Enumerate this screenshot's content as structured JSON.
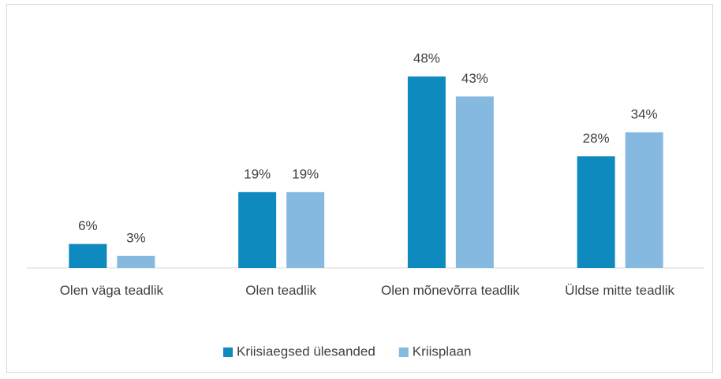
{
  "chart_data": {
    "type": "bar",
    "categories": [
      "Olen väga teadlik",
      "Olen teadlik",
      "Olen mõnevõrra teadlik",
      "Üldse mitte teadlik"
    ],
    "series": [
      {
        "name": "Kriisiaegsed ülesanded",
        "color": "#0e8abf",
        "values": [
          6,
          19,
          48,
          28
        ],
        "value_labels": [
          "6%",
          "19%",
          "48%",
          "28%"
        ]
      },
      {
        "name": "Kriisplaan",
        "color": "#86b9e0",
        "values": [
          3,
          19,
          43,
          34
        ],
        "value_labels": [
          "3%",
          "19%",
          "43%",
          "34%"
        ]
      }
    ],
    "legend": "bottom"
  }
}
